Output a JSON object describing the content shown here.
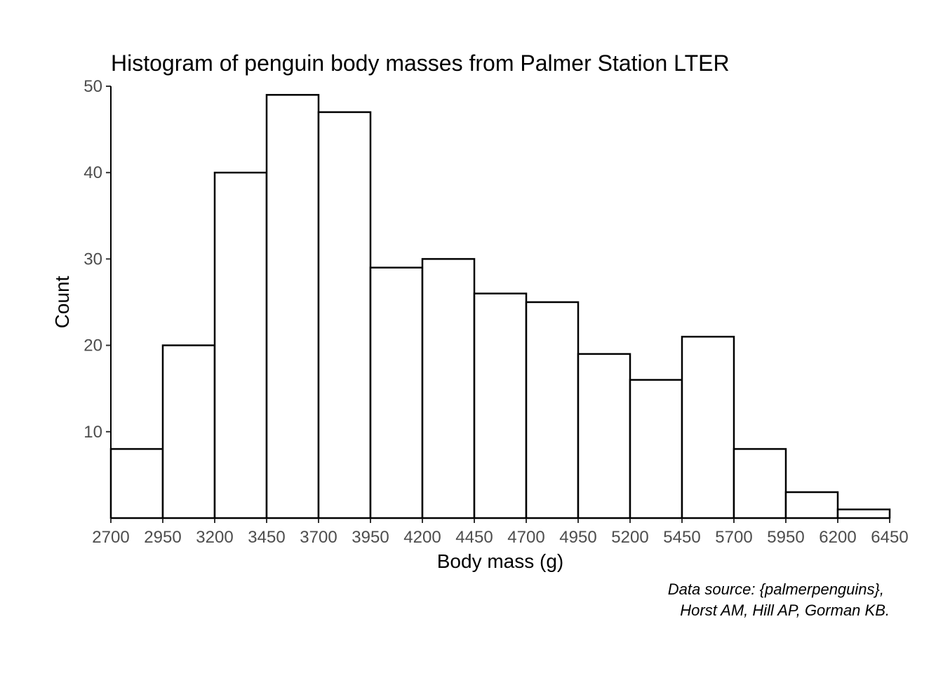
{
  "chart_data": {
    "type": "bar",
    "subtype": "histogram",
    "title": "Histogram of penguin body masses from Palmer Station LTER",
    "xlabel": "Body mass (g)",
    "ylabel": "Count",
    "caption_lines": [
      "Data source: {palmerpenguins},",
      "Horst AM, Hill AP, Gorman KB."
    ],
    "bin_edges": [
      2700,
      2950,
      3200,
      3450,
      3700,
      3950,
      4200,
      4450,
      4700,
      4950,
      5200,
      5450,
      5700,
      5950,
      6200,
      6450
    ],
    "counts": [
      8,
      20,
      40,
      49,
      47,
      29,
      30,
      26,
      25,
      19,
      16,
      21,
      8,
      3,
      1
    ],
    "xlim": [
      2700,
      6450
    ],
    "ylim": [
      0,
      50
    ],
    "x_ticks": [
      "2700",
      "2950",
      "3200",
      "3450",
      "3700",
      "3950",
      "4200",
      "4450",
      "4700",
      "4950",
      "5200",
      "5450",
      "5700",
      "5950",
      "6200",
      "6450"
    ],
    "y_ticks": [
      "10",
      "20",
      "30",
      "40",
      "50"
    ],
    "bar_fill": "#ffffff",
    "bar_outline": "#000000",
    "grid": false,
    "legend": "none"
  }
}
